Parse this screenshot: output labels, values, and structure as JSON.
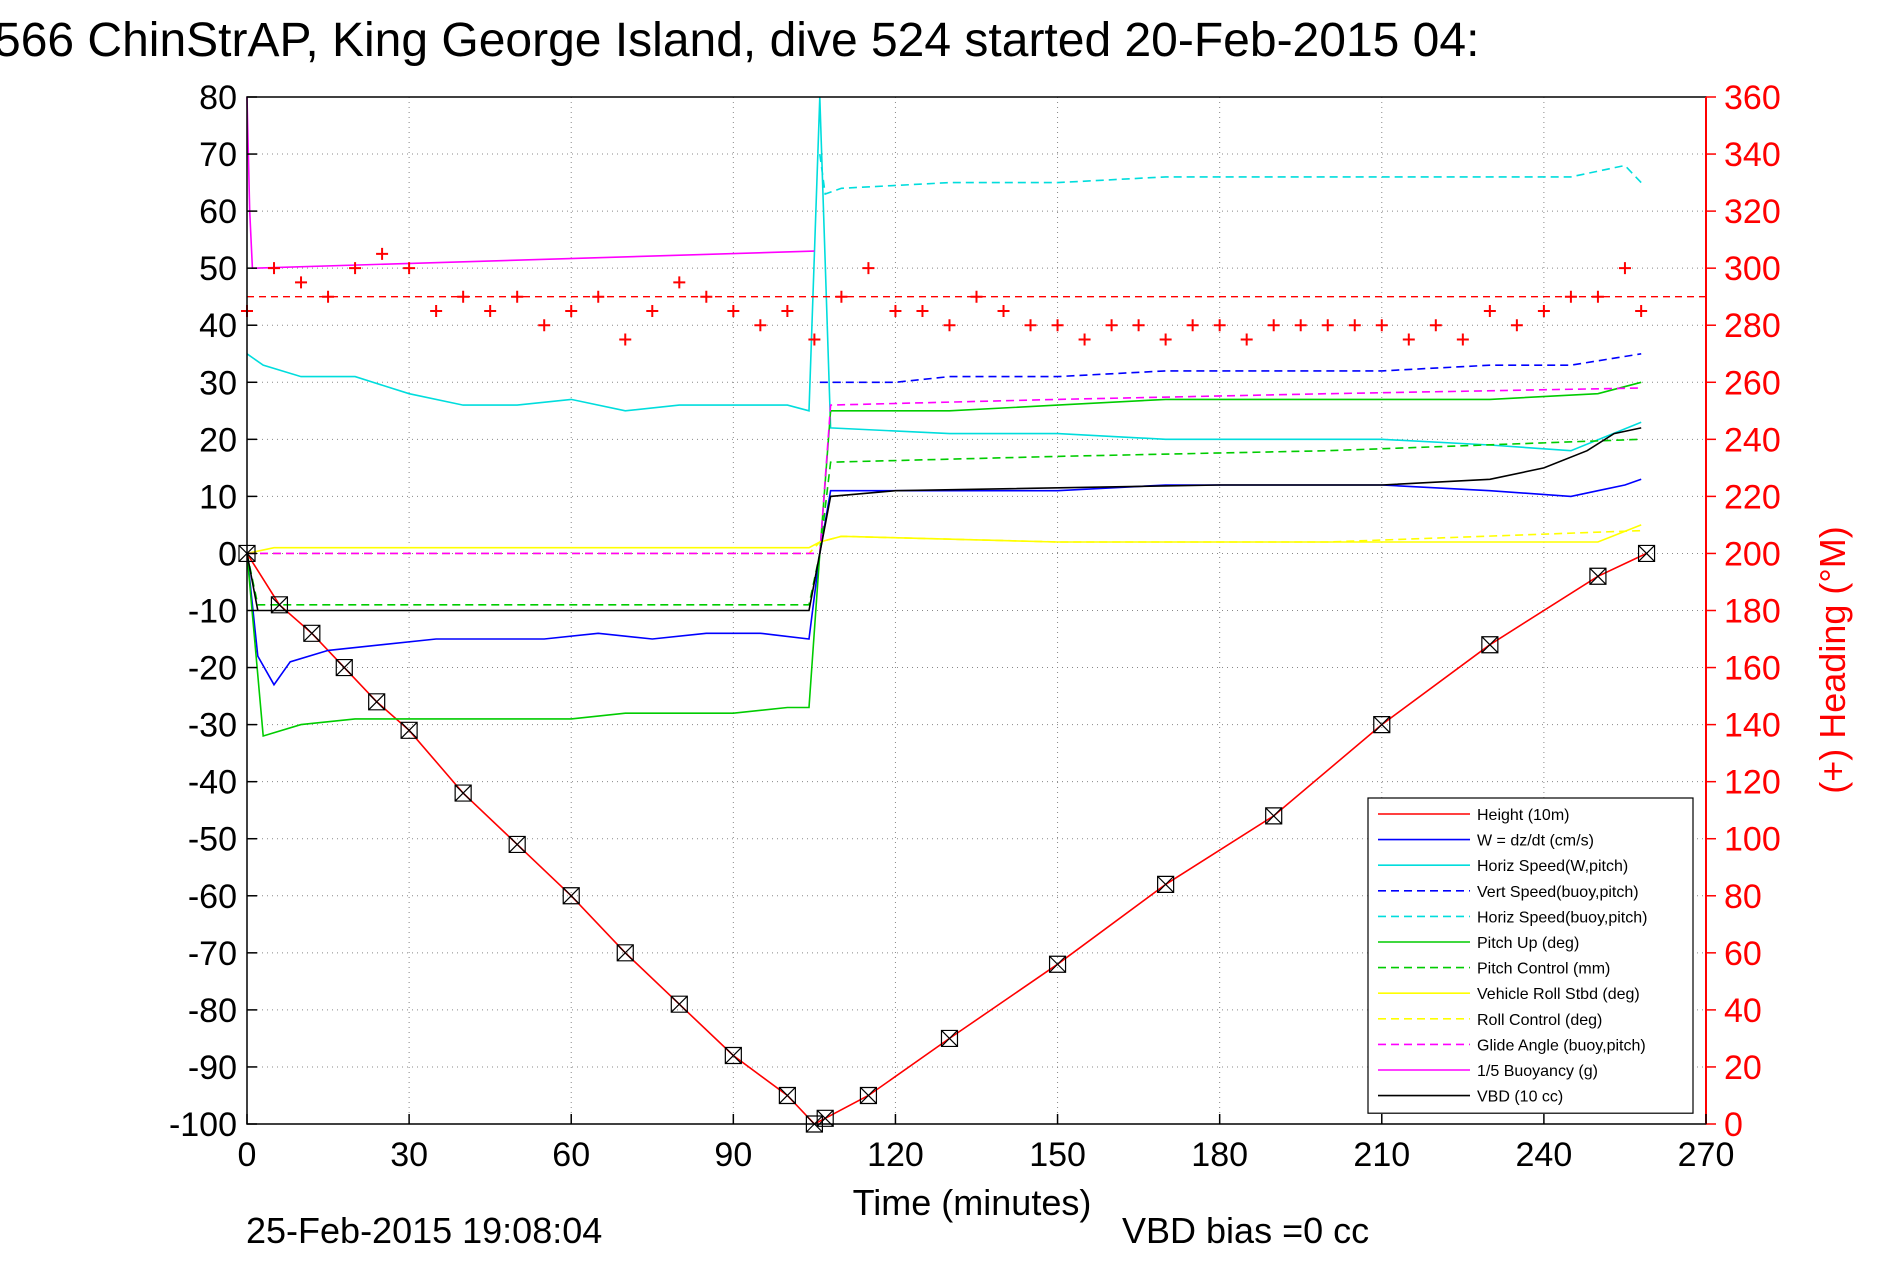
{
  "chart_data": {
    "type": "line",
    "title": "566 ChinStrAP, King George Island, dive 524 started 20-Feb-2015 04:",
    "xlabel": "Time (minutes)",
    "ylabel": "",
    "ylabel_right": "(+) Heading (°M)",
    "xlim": [
      0,
      270
    ],
    "ylim": [
      -100,
      80
    ],
    "ylim_right": [
      0,
      360
    ],
    "x_ticks": [
      "0",
      "30",
      "60",
      "90",
      "120",
      "150",
      "180",
      "210",
      "240",
      "270"
    ],
    "y_ticks": [
      "-100",
      "-90",
      "-80",
      "-70",
      "-60",
      "-50",
      "-40",
      "-30",
      "-20",
      "-10",
      "0",
      "10",
      "20",
      "30",
      "40",
      "50",
      "60",
      "70",
      "80"
    ],
    "y_right_ticks": [
      "0",
      "20",
      "40",
      "60",
      "80",
      "100",
      "120",
      "140",
      "160",
      "180",
      "200",
      "220",
      "240",
      "260",
      "280",
      "300",
      "320",
      "340",
      "360"
    ],
    "grid": true,
    "legend_position": "bottom-right",
    "footer_left": "25-Feb-2015 19:08:04",
    "footer_right": "VBD bias =0 cc",
    "series": [
      {
        "name": "Height (10m)",
        "color": "#ff0000",
        "style": "solid",
        "x": [
          0,
          6,
          12,
          18,
          24,
          30,
          40,
          50,
          60,
          70,
          80,
          90,
          100,
          105,
          107,
          115,
          130,
          150,
          170,
          190,
          210,
          230,
          250,
          259
        ],
        "y": [
          0,
          -9,
          -14,
          -20,
          -26,
          -31,
          -42,
          -51,
          -60,
          -70,
          -79,
          -88,
          -95,
          -100,
          -99,
          -95,
          -85,
          -72,
          -58,
          -46,
          -30,
          -16,
          -4,
          0
        ]
      },
      {
        "name": "W = dz/dt (cm/s)",
        "color": "#0000ff",
        "style": "solid",
        "x": [
          0,
          2,
          5,
          8,
          15,
          25,
          35,
          45,
          55,
          65,
          75,
          85,
          95,
          104,
          106,
          108,
          130,
          150,
          170,
          190,
          210,
          230,
          245,
          250,
          255,
          258
        ],
        "y": [
          0,
          -18,
          -23,
          -19,
          -17,
          -16,
          -15,
          -15,
          -15,
          -14,
          -15,
          -14,
          -14,
          -15,
          0,
          11,
          11,
          11,
          12,
          12,
          12,
          11,
          10,
          11,
          12,
          13
        ]
      },
      {
        "name": "Horiz Speed(W,pitch)",
        "color": "#00dddd",
        "style": "solid",
        "x": [
          0,
          3,
          10,
          20,
          30,
          40,
          50,
          60,
          70,
          80,
          90,
          100,
          104,
          106,
          108,
          130,
          150,
          170,
          190,
          210,
          230,
          245,
          258
        ],
        "y": [
          35,
          33,
          31,
          31,
          28,
          26,
          26,
          27,
          25,
          26,
          26,
          26,
          25,
          80,
          22,
          21,
          21,
          20,
          20,
          20,
          19,
          18,
          23
        ]
      },
      {
        "name": "Vert Speed(buoy,pitch)",
        "color": "#0000ff",
        "style": "dashed",
        "x": [
          106,
          110,
          120,
          130,
          150,
          170,
          190,
          210,
          230,
          245,
          258
        ],
        "y": [
          30,
          30,
          30,
          31,
          31,
          32,
          32,
          32,
          33,
          33,
          35
        ]
      },
      {
        "name": "Horiz Speed(buoy,pitch)",
        "color": "#00dddd",
        "style": "dashed",
        "x": [
          106,
          107,
          110,
          130,
          150,
          170,
          190,
          210,
          230,
          245,
          255,
          258
        ],
        "y": [
          70,
          63,
          64,
          65,
          65,
          66,
          66,
          66,
          66,
          66,
          68,
          65
        ]
      },
      {
        "name": "Pitch Up (deg)",
        "color": "#00cc00",
        "style": "solid",
        "x": [
          0,
          3,
          10,
          20,
          30,
          40,
          50,
          60,
          70,
          80,
          90,
          100,
          104,
          106,
          108,
          130,
          150,
          170,
          190,
          210,
          230,
          250,
          258
        ],
        "y": [
          0,
          -32,
          -30,
          -29,
          -29,
          -29,
          -29,
          -29,
          -28,
          -28,
          -28,
          -27,
          -27,
          0,
          25,
          25,
          26,
          27,
          27,
          27,
          27,
          28,
          30
        ]
      },
      {
        "name": "Pitch Control (mm)",
        "color": "#00cc00",
        "style": "dashed",
        "x": [
          0,
          2,
          50,
          104,
          106,
          108,
          150,
          200,
          258
        ],
        "y": [
          0,
          -9,
          -9,
          -9,
          0,
          16,
          17,
          18,
          20
        ]
      },
      {
        "name": "Vehicle Roll Stbd (deg)",
        "color": "#ffff00",
        "style": "solid",
        "x": [
          0,
          5,
          30,
          60,
          90,
          104,
          106,
          110,
          150,
          200,
          250,
          258
        ],
        "y": [
          0,
          1,
          1,
          1,
          1,
          1,
          2,
          3,
          2,
          2,
          2,
          5
        ]
      },
      {
        "name": "Roll Control (deg)",
        "color": "#ffff00",
        "style": "dashed",
        "x": [
          0,
          5,
          40,
          80,
          104,
          106,
          110,
          150,
          200,
          258
        ],
        "y": [
          0,
          0,
          0,
          0,
          0,
          2,
          3,
          2,
          2,
          4
        ]
      },
      {
        "name": "Glide Angle (buoy,pitch)",
        "color": "#ff00ff",
        "style": "dashed",
        "x": [
          0,
          104,
          106,
          108,
          150,
          200,
          258
        ],
        "y": [
          0,
          0,
          0,
          26,
          27,
          28,
          29
        ]
      },
      {
        "name": "1/5 Buoyancy (g)",
        "color": "#ff00ff",
        "style": "solid",
        "x": [
          0,
          0.5,
          1,
          105
        ],
        "y": [
          80,
          60,
          50,
          53
        ]
      },
      {
        "name": "VBD (10 cc)",
        "color": "#000000",
        "style": "solid",
        "x": [
          0,
          1,
          2,
          104,
          106,
          108,
          120,
          180,
          210,
          230,
          240,
          248,
          253,
          258
        ],
        "y": [
          0,
          -5,
          -10,
          -10,
          0,
          10,
          11,
          12,
          12,
          13,
          15,
          18,
          21,
          22
        ]
      }
    ],
    "heading_series": {
      "name": "(+) Heading (°M)",
      "color": "#ff0000",
      "marker": "+",
      "axis": "right",
      "reference": 290,
      "x": [
        0,
        5,
        10,
        15,
        20,
        25,
        30,
        35,
        40,
        45,
        50,
        55,
        60,
        65,
        70,
        75,
        80,
        85,
        90,
        95,
        100,
        105,
        110,
        115,
        120,
        125,
        130,
        135,
        140,
        145,
        150,
        155,
        160,
        165,
        170,
        175,
        180,
        185,
        190,
        195,
        200,
        205,
        210,
        215,
        220,
        225,
        230,
        235,
        240,
        245,
        250,
        255,
        258
      ],
      "y": [
        285,
        300,
        295,
        290,
        300,
        305,
        300,
        285,
        290,
        285,
        290,
        280,
        285,
        290,
        275,
        285,
        295,
        290,
        285,
        280,
        285,
        275,
        290,
        300,
        285,
        285,
        280,
        290,
        285,
        280,
        280,
        275,
        280,
        280,
        275,
        280,
        280,
        275,
        280,
        280,
        280,
        280,
        280,
        275,
        280,
        275,
        285,
        280,
        285,
        290,
        290,
        300,
        285
      ]
    }
  }
}
